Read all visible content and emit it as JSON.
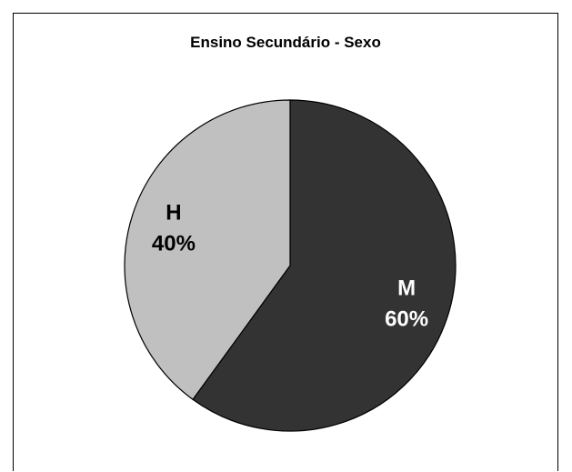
{
  "chart_data": {
    "type": "pie",
    "title": "Ensino Secundário - Sexo",
    "slices": [
      {
        "label": "M",
        "value": 60,
        "percent_label": "60%",
        "color": "#333333",
        "text_color": "#ffffff"
      },
      {
        "label": "H",
        "value": 40,
        "percent_label": "40%",
        "color": "#c0c0c0",
        "text_color": "#000000"
      }
    ],
    "start_angle_deg": 0,
    "direction": "clockwise",
    "stroke_color": "#000000"
  }
}
